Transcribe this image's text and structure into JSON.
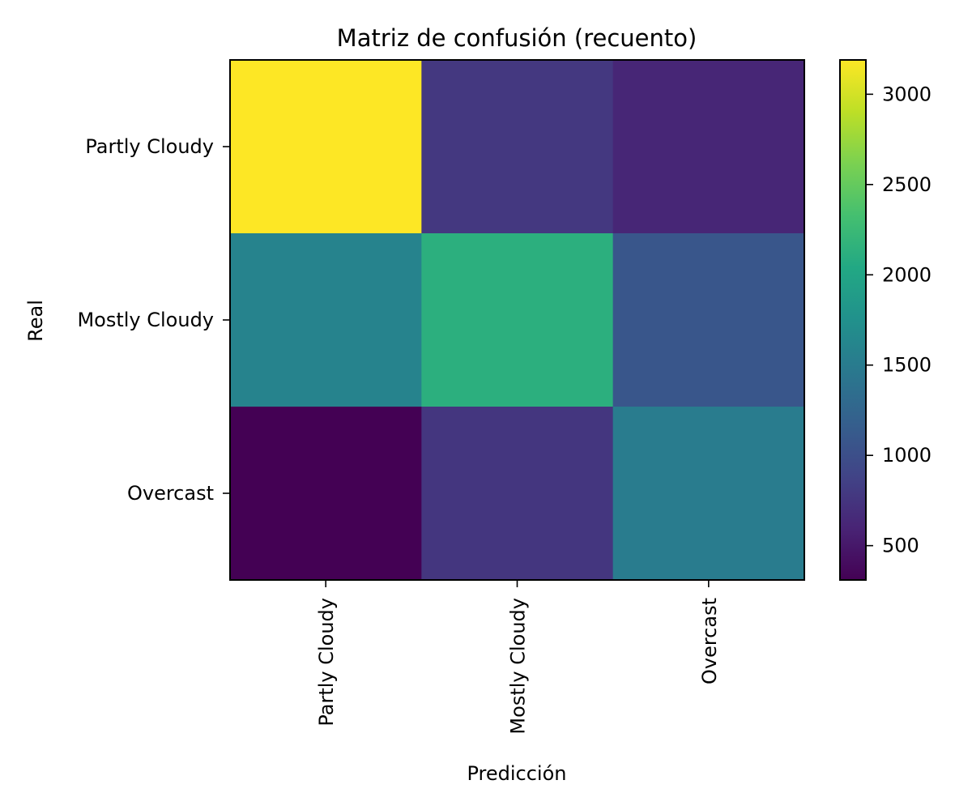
{
  "chart_data": {
    "type": "heatmap",
    "title": "Matriz de confusión (recuento)",
    "xlabel": "Predicción",
    "ylabel": "Real",
    "x_categories": [
      "Partly Cloudy",
      "Mostly Cloudy",
      "Overcast"
    ],
    "y_categories": [
      "Partly Cloudy",
      "Mostly Cloudy",
      "Overcast"
    ],
    "values": [
      [
        3190,
        780,
        620
      ],
      [
        1590,
        2120,
        1080
      ],
      [
        310,
        760,
        1510
      ]
    ],
    "colormap": "viridis",
    "vmin": 310,
    "vmax": 3190,
    "colorbar_ticks": [
      500,
      1000,
      1500,
      2000,
      2500,
      3000
    ],
    "grid": false
  }
}
